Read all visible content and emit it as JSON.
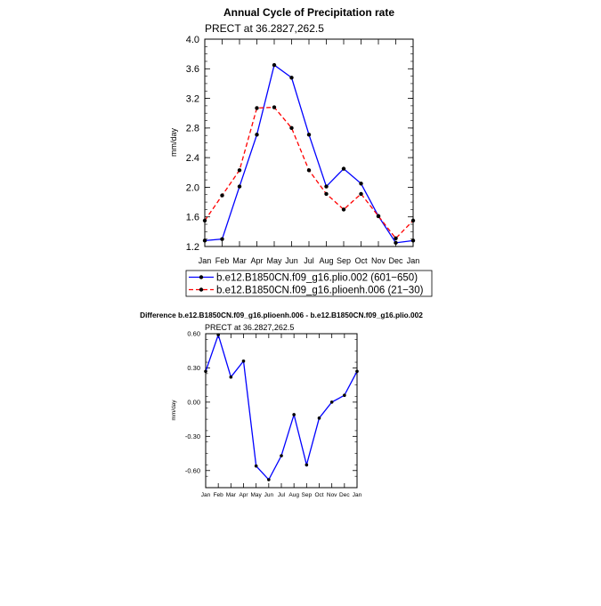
{
  "chart_data": [
    {
      "type": "line",
      "title": "Annual Cycle of Precipitation rate",
      "subtitle": "PRECT at 36.2827,262.5",
      "xlabel": "",
      "ylabel": "mm/day",
      "categories": [
        "Jan",
        "Feb",
        "Mar",
        "Apr",
        "May",
        "Jun",
        "Jul",
        "Aug",
        "Sep",
        "Oct",
        "Nov",
        "Dec",
        "Jan"
      ],
      "ylim": [
        1.2,
        4.0
      ],
      "yticks": [
        "1.2",
        "1.6",
        "2.0",
        "2.4",
        "2.8",
        "3.2",
        "3.6",
        "4.0"
      ],
      "grid": false,
      "legend_position": "bottom",
      "series": [
        {
          "name": "b.e12.B1850CN.f09_g16.plio.002 (601−650)",
          "color": "#0000ff",
          "dash": "solid",
          "values": [
            1.28,
            1.3,
            2.01,
            2.71,
            3.65,
            3.48,
            2.71,
            2.01,
            2.25,
            2.05,
            1.61,
            1.25,
            1.28
          ]
        },
        {
          "name": "b.e12.B1850CN.f09_g16.plioenh.006 (21−30)",
          "color": "#ff0000",
          "dash": "dashed",
          "values": [
            1.55,
            1.89,
            2.23,
            3.07,
            3.08,
            2.8,
            2.23,
            1.91,
            1.7,
            1.91,
            1.61,
            1.31,
            1.55
          ]
        }
      ]
    },
    {
      "type": "line",
      "title": "Difference b.e12.B1850CN.f09_g16.plioenh.006 - b.e12.B1850CN.f09_g16.plio.002",
      "subtitle": "PRECT at 36.2827,262.5",
      "xlabel": "",
      "ylabel": "mm/day",
      "categories": [
        "Jan",
        "Feb",
        "Mar",
        "Apr",
        "May",
        "Jun",
        "Jul",
        "Aug",
        "Sep",
        "Oct",
        "Nov",
        "Dec",
        "Jan"
      ],
      "ylim": [
        -0.75,
        0.6
      ],
      "yticks": [
        "-0.60",
        "-0.30",
        "0.00",
        "0.30",
        "0.60"
      ],
      "grid": false,
      "series": [
        {
          "color": "#0000ff",
          "values": [
            0.27,
            0.59,
            0.22,
            0.36,
            -0.56,
            -0.68,
            -0.47,
            -0.11,
            -0.55,
            -0.14,
            0.0,
            0.06,
            0.27
          ]
        }
      ]
    }
  ]
}
